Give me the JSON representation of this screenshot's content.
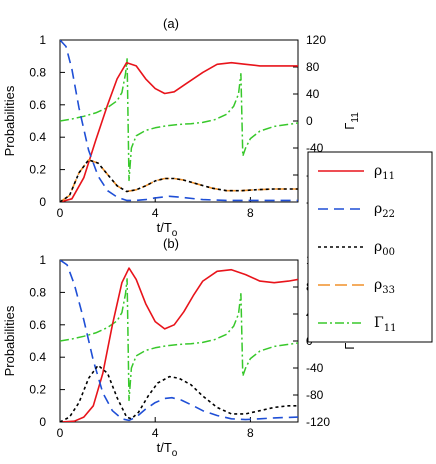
{
  "chart_data": [
    {
      "type": "line",
      "title": "(a)",
      "xlabel": "t/T",
      "xlabel_sub": "o",
      "ylabel": "Probabilities",
      "y2label": "Γ",
      "y2label_sub": "11",
      "xlim": [
        0,
        10
      ],
      "ylim": [
        0,
        1
      ],
      "y2lim": [
        -120,
        120
      ],
      "xticks": [
        "0",
        "4",
        "8"
      ],
      "yticks": [
        "0",
        "0.2",
        "0.4",
        "0.6",
        "0.8",
        "1"
      ],
      "y2ticks": [
        "120",
        "80",
        "40",
        "0",
        "-40",
        "-80",
        "-120"
      ],
      "grid": false,
      "series": [
        {
          "name": "ρ11",
          "axis": "left",
          "color": "#e8141b",
          "x": [
            0,
            0.5,
            1,
            1.5,
            2,
            2.4,
            2.8,
            3.2,
            3.6,
            4,
            4.4,
            4.8,
            5.3,
            6,
            6.6,
            7.2,
            7.8,
            8.4,
            9,
            9.6,
            10
          ],
          "y": [
            0,
            0.02,
            0.15,
            0.38,
            0.6,
            0.76,
            0.86,
            0.84,
            0.76,
            0.7,
            0.67,
            0.68,
            0.73,
            0.8,
            0.85,
            0.86,
            0.85,
            0.84,
            0.84,
            0.84,
            0.84
          ]
        },
        {
          "name": "ρ22",
          "axis": "left",
          "color": "#1f4fd6",
          "x": [
            0,
            0.25,
            0.5,
            0.8,
            1.2,
            1.6,
            2,
            2.4,
            2.8,
            3.2,
            3.6,
            4,
            4.6,
            5,
            6,
            7,
            8,
            9,
            10
          ],
          "y": [
            1,
            0.96,
            0.82,
            0.58,
            0.32,
            0.16,
            0.07,
            0.03,
            0.01,
            0.01,
            0.015,
            0.025,
            0.035,
            0.03,
            0.015,
            0.01,
            0.01,
            0.01,
            0.01
          ]
        },
        {
          "name": "ρ00",
          "axis": "left",
          "color": "#000000",
          "x": [
            0,
            0.4,
            0.8,
            1.2,
            1.6,
            2,
            2.4,
            2.8,
            3.2,
            3.6,
            4,
            4.4,
            4.8,
            5.2,
            5.8,
            6.4,
            7,
            7.6,
            8.2,
            9,
            10
          ],
          "y": [
            0,
            0.04,
            0.18,
            0.26,
            0.24,
            0.17,
            0.1,
            0.065,
            0.075,
            0.1,
            0.13,
            0.145,
            0.145,
            0.135,
            0.11,
            0.085,
            0.07,
            0.07,
            0.075,
            0.08,
            0.08
          ]
        },
        {
          "name": "ρ33",
          "axis": "left",
          "color": "#f0912a",
          "x": [
            0,
            0.4,
            0.8,
            1.2,
            1.6,
            2,
            2.4,
            2.8,
            3.2,
            3.6,
            4,
            4.4,
            4.8,
            5.2,
            5.8,
            6.4,
            7,
            7.6,
            8.2,
            9,
            10
          ],
          "y": [
            0,
            0.04,
            0.18,
            0.26,
            0.24,
            0.17,
            0.1,
            0.065,
            0.075,
            0.1,
            0.13,
            0.145,
            0.145,
            0.135,
            0.11,
            0.085,
            0.07,
            0.07,
            0.075,
            0.08,
            0.08
          ]
        },
        {
          "name": "Γ11",
          "axis": "right",
          "color": "#38c82b",
          "x": [
            0,
            0.5,
            1,
            1.5,
            2,
            2.4,
            2.6,
            2.75,
            2.82,
            2.9,
            3.0,
            3.2,
            3.6,
            4,
            4.5,
            5,
            5.5,
            6,
            6.5,
            7,
            7.3,
            7.5,
            7.6,
            7.68,
            7.8,
            8,
            8.4,
            9,
            10
          ],
          "y": [
            0,
            3,
            7,
            12,
            20,
            30,
            42,
            70,
            92,
            -88,
            -40,
            -22,
            -14,
            -10,
            -7,
            -5,
            -4,
            -2,
            2,
            10,
            22,
            40,
            70,
            -52,
            -40,
            -26,
            -15,
            -8,
            -3
          ]
        }
      ]
    },
    {
      "type": "line",
      "title": "(b)",
      "xlabel": "t/T",
      "xlabel_sub": "o",
      "ylabel": "Probabilities",
      "y2label": "Γ",
      "y2label_sub": "11",
      "xlim": [
        0,
        10
      ],
      "ylim": [
        0,
        1
      ],
      "y2lim": [
        -120,
        120
      ],
      "xticks": [
        "0",
        "4",
        "8"
      ],
      "yticks": [
        "0",
        "0.2",
        "0.4",
        "0.6",
        "0.8",
        "1"
      ],
      "y2ticks": [
        "120",
        "80",
        "40",
        "0",
        "-40",
        "-80",
        "-120"
      ],
      "grid": false,
      "series": [
        {
          "name": "ρ11",
          "axis": "left",
          "color": "#e8141b",
          "x": [
            0,
            0.6,
            1,
            1.4,
            1.8,
            2.2,
            2.6,
            2.9,
            3.2,
            3.6,
            4,
            4.4,
            4.8,
            5.2,
            5.6,
            6,
            6.6,
            7.2,
            7.8,
            8.4,
            9,
            9.6,
            10
          ],
          "y": [
            0,
            0.005,
            0.03,
            0.1,
            0.3,
            0.6,
            0.86,
            0.95,
            0.88,
            0.73,
            0.62,
            0.575,
            0.6,
            0.68,
            0.78,
            0.87,
            0.93,
            0.94,
            0.91,
            0.87,
            0.86,
            0.87,
            0.88
          ]
        },
        {
          "name": "ρ22",
          "axis": "left",
          "color": "#1f4fd6",
          "x": [
            0,
            0.3,
            0.6,
            1,
            1.4,
            1.8,
            2.2,
            2.6,
            2.9,
            3.2,
            3.6,
            4,
            4.4,
            4.7,
            5.1,
            5.6,
            6,
            6.6,
            7.2,
            7.8,
            8.4,
            9,
            10
          ],
          "y": [
            1,
            0.97,
            0.85,
            0.63,
            0.38,
            0.18,
            0.07,
            0.02,
            0.01,
            0.03,
            0.08,
            0.12,
            0.145,
            0.15,
            0.135,
            0.1,
            0.07,
            0.04,
            0.02,
            0.015,
            0.02,
            0.025,
            0.03
          ]
        },
        {
          "name": "ρ00",
          "axis": "left",
          "color": "#000000",
          "x": [
            0,
            0.4,
            0.8,
            1.2,
            1.6,
            2,
            2.4,
            2.8,
            3,
            3.3,
            3.7,
            4.1,
            4.6,
            5,
            5.5,
            6,
            6.6,
            7.2,
            7.8,
            8.4,
            9,
            9.6,
            10
          ],
          "y": [
            0,
            0.03,
            0.12,
            0.27,
            0.35,
            0.3,
            0.15,
            0.03,
            0.02,
            0.06,
            0.16,
            0.24,
            0.28,
            0.27,
            0.23,
            0.16,
            0.09,
            0.05,
            0.05,
            0.07,
            0.09,
            0.1,
            0.1
          ]
        },
        {
          "name": "Γ11",
          "axis": "right",
          "color": "#38c82b",
          "x": [
            0,
            0.5,
            1,
            1.5,
            2,
            2.4,
            2.6,
            2.75,
            2.82,
            2.9,
            3.0,
            3.2,
            3.6,
            4,
            4.5,
            5,
            5.5,
            6,
            6.5,
            7,
            7.3,
            7.5,
            7.6,
            7.68,
            7.8,
            8,
            8.4,
            9,
            10
          ],
          "y": [
            0,
            3,
            7,
            12,
            20,
            30,
            42,
            70,
            92,
            -88,
            -40,
            -22,
            -14,
            -10,
            -7,
            -5,
            -4,
            -2,
            2,
            10,
            22,
            40,
            70,
            -52,
            -40,
            -26,
            -15,
            -8,
            -3
          ]
        }
      ]
    }
  ],
  "legend": {
    "placement": "right",
    "entries": [
      {
        "label": "ρ",
        "sub": "11",
        "color": "#e8141b",
        "dash": "none"
      },
      {
        "label": "ρ",
        "sub": "22",
        "color": "#1f4fd6",
        "dash": "10 6"
      },
      {
        "label": "ρ",
        "sub": "00",
        "color": "#000000",
        "dash": "3 3"
      },
      {
        "label": "ρ",
        "sub": "33",
        "color": "#f0912a",
        "dash": "12 5"
      },
      {
        "label": "Γ",
        "sub": "11",
        "color": "#38c82b",
        "dash": "9 3 2 3"
      }
    ]
  }
}
